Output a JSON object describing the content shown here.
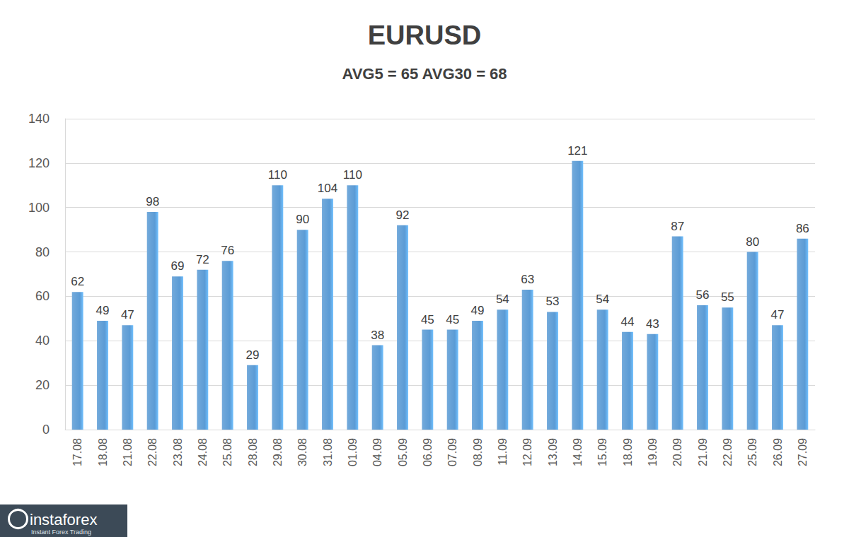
{
  "chart_data": {
    "type": "bar",
    "title": "EURUSD",
    "subtitle": "AVG5 = 65 AVG30 = 68",
    "categories": [
      "17.08",
      "18.08",
      "21.08",
      "22.08",
      "23.08",
      "24.08",
      "25.08",
      "28.08",
      "29.08",
      "30.08",
      "31.08",
      "01.09",
      "04.09",
      "05.09",
      "06.09",
      "07.09",
      "08.09",
      "11.09",
      "12.09",
      "13.09",
      "14.09",
      "15.09",
      "18.09",
      "19.09",
      "20.09",
      "21.09",
      "22.09",
      "25.09",
      "26.09",
      "27.09"
    ],
    "values": [
      62,
      49,
      47,
      98,
      69,
      72,
      76,
      29,
      110,
      90,
      104,
      110,
      38,
      92,
      45,
      45,
      49,
      54,
      63,
      53,
      121,
      54,
      44,
      43,
      87,
      56,
      55,
      80,
      47,
      86
    ],
    "color": "#5b9bd5",
    "ylim": [
      0,
      140
    ],
    "yticks": [
      0,
      20,
      40,
      60,
      80,
      100,
      120,
      140
    ],
    "grid": true,
    "data_labels": true,
    "annotations": [
      {
        "text": "instaforex"
      },
      {
        "text": "Instant Forex Trading"
      }
    ]
  }
}
